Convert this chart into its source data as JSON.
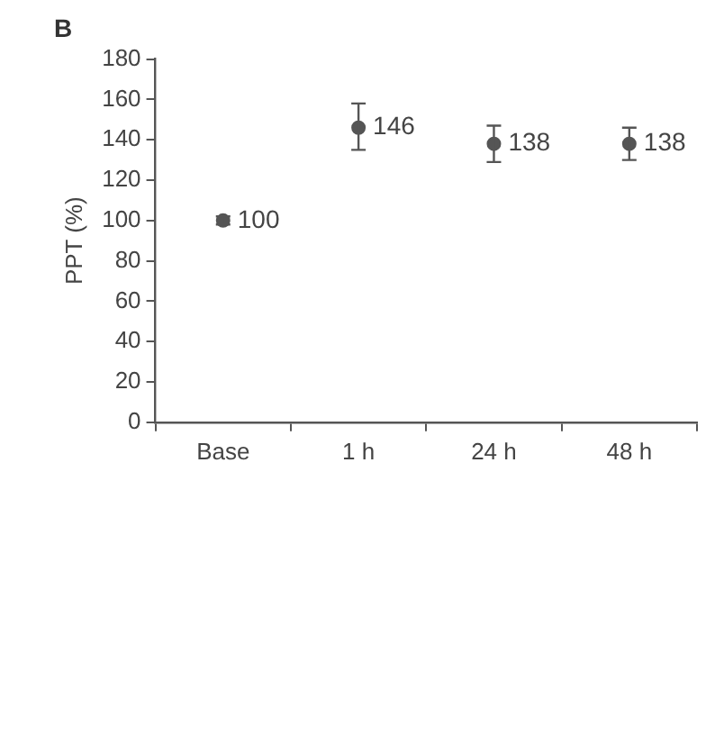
{
  "chart_data": {
    "type": "scatter",
    "title": "B",
    "ylabel": "PPT (%)",
    "categories": [
      "Base",
      "1 h",
      "24 h",
      "48 h"
    ],
    "values": [
      100,
      146,
      138,
      138
    ],
    "errors": [
      [
        98,
        102
      ],
      [
        135,
        158
      ],
      [
        129,
        147
      ],
      [
        130,
        146
      ]
    ],
    "color": "#555555",
    "marker": "circle",
    "data_labels": true,
    "ylim": [
      0,
      180
    ],
    "yticks": [
      0,
      20,
      40,
      60,
      80,
      100,
      120,
      140,
      160,
      180
    ],
    "grid": false,
    "legend": false
  }
}
